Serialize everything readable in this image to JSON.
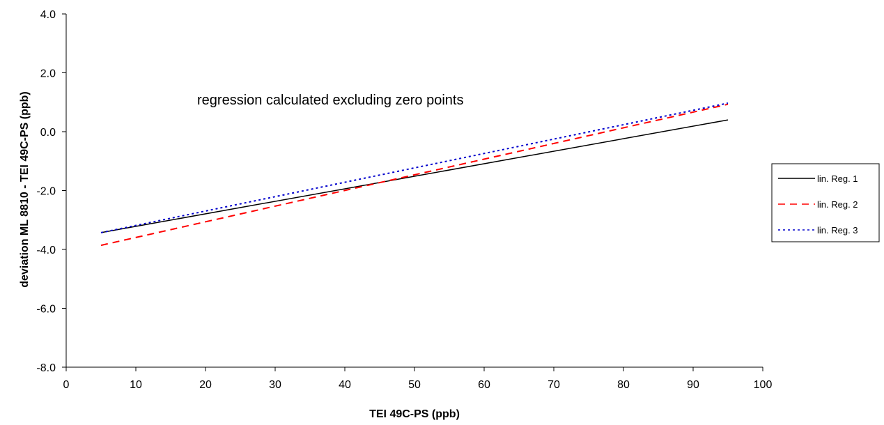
{
  "chart_data": {
    "type": "line",
    "title": "",
    "xlabel": "TEI 49C-PS (ppb)",
    "ylabel": "deviation ML 8810 - TEI 49C-PS (ppb)",
    "xlim": [
      0,
      100
    ],
    "ylim": [
      -8,
      4
    ],
    "x_ticks": [
      0,
      10,
      20,
      30,
      40,
      50,
      60,
      70,
      80,
      90,
      100
    ],
    "x_tick_labels": [
      "0",
      "10",
      "20",
      "30",
      "40",
      "50",
      "60",
      "70",
      "80",
      "90",
      "100"
    ],
    "y_ticks": [
      4,
      2,
      0,
      -2,
      -4,
      -6,
      -8
    ],
    "y_tick_labels": [
      "4.0",
      "2.0",
      "0.0",
      "-2.0",
      "-4.0",
      "-6.0",
      "-8.0"
    ],
    "grid": false,
    "annotation": "regression calculated excluding zero points",
    "legend_position": "right",
    "series": [
      {
        "name": "lin. Reg. 1",
        "color": "#000000",
        "style": "solid",
        "x": [
          5,
          95
        ],
        "y": [
          -3.43,
          0.4
        ]
      },
      {
        "name": "lin. Reg. 2",
        "color": "#ff0000",
        "style": "dashed",
        "x": [
          5,
          95
        ],
        "y": [
          -3.86,
          0.93
        ]
      },
      {
        "name": "lin. Reg. 3",
        "color": "#0000cc",
        "style": "dotted",
        "x": [
          5,
          95
        ],
        "y": [
          -3.43,
          0.97
        ]
      }
    ]
  }
}
